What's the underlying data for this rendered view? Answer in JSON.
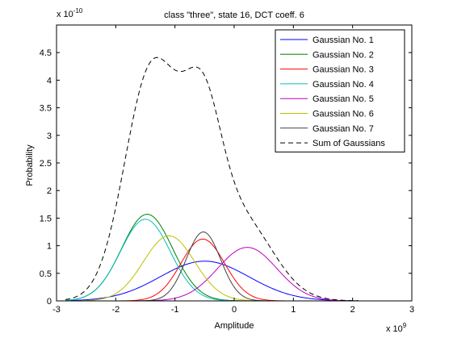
{
  "chart_data": {
    "type": "line",
    "title": "class \"three\", state 16, DCT coeff. 6",
    "xlabel": "Amplitude",
    "ylabel": "Probability",
    "x_exponent_label": "x 10",
    "x_exponent_power": "9",
    "y_exponent_label": "x 10",
    "y_exponent_power": "-10",
    "xlim": [
      -3,
      3
    ],
    "ylim": [
      0,
      5
    ],
    "xticks": [
      -3,
      -2,
      -1,
      0,
      1,
      2,
      3
    ],
    "xtick_labels": [
      "-3",
      "-2",
      "-1",
      "0",
      "1",
      "2",
      "3"
    ],
    "yticks": [
      0,
      0.5,
      1,
      1.5,
      2,
      2.5,
      3,
      3.5,
      4,
      4.5
    ],
    "ytick_labels": [
      "0",
      "0.5",
      "1",
      "1.5",
      "2",
      "2.5",
      "3",
      "3.5",
      "4",
      "4.5"
    ],
    "grid": false,
    "legend_position": "top-right",
    "x_domain": [
      -2.85,
      2.1
    ],
    "series": [
      {
        "name": "Gaussian No. 1",
        "color": "#0000ff",
        "style": "solid",
        "mu": -0.5,
        "sigma": 0.75,
        "peak": 0.72
      },
      {
        "name": "Gaussian No. 2",
        "color": "#008000",
        "style": "solid",
        "mu": -1.47,
        "sigma": 0.43,
        "peak": 1.57
      },
      {
        "name": "Gaussian No. 3",
        "color": "#ff0000",
        "style": "solid",
        "mu": -0.53,
        "sigma": 0.37,
        "peak": 1.12
      },
      {
        "name": "Gaussian No. 4",
        "color": "#00bfbf",
        "style": "solid",
        "mu": -1.5,
        "sigma": 0.42,
        "peak": 1.48
      },
      {
        "name": "Gaussian No. 5",
        "color": "#bf00bf",
        "style": "solid",
        "mu": 0.22,
        "sigma": 0.5,
        "peak": 0.97
      },
      {
        "name": "Gaussian No. 6",
        "color": "#bfbf00",
        "style": "solid",
        "mu": -1.1,
        "sigma": 0.43,
        "peak": 1.18
      },
      {
        "name": "Gaussian No. 7",
        "color": "#404040",
        "style": "solid",
        "mu": -0.52,
        "sigma": 0.29,
        "peak": 1.25
      },
      {
        "name": "Sum of Gaussians",
        "color": "#000000",
        "style": "dashed",
        "sum": true
      }
    ]
  }
}
